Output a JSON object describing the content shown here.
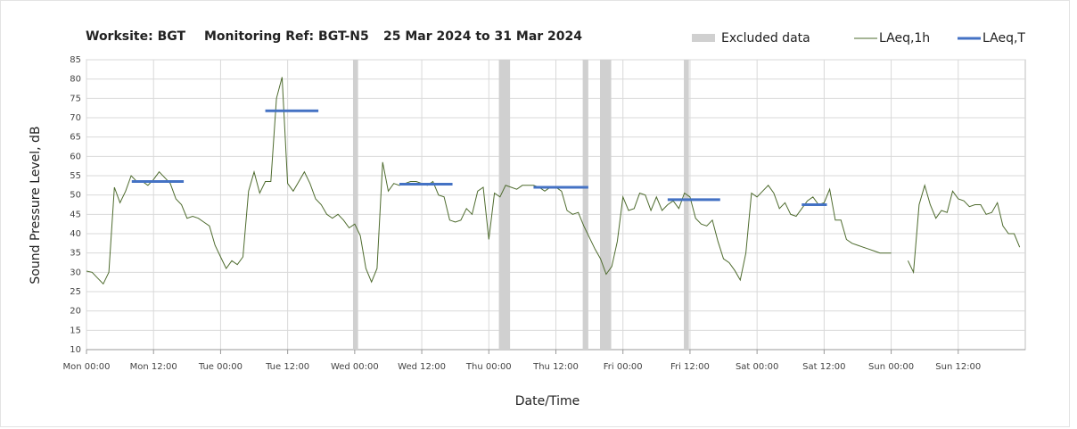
{
  "chart_data": {
    "type": "line",
    "title_parts": [
      "Worksite: BGT",
      "Monitoring Ref: BGT-N5",
      "25 Mar 2024 to 31 Mar 2024"
    ],
    "y_label": "Sound Pressure Level, dB",
    "x_label": "Date/Time",
    "xlim": [
      0,
      168
    ],
    "xticks": [
      {
        "value": 0,
        "label": "Mon 00:00"
      },
      {
        "value": 12,
        "label": "Mon 12:00"
      },
      {
        "value": 24,
        "label": "Tue 00:00"
      },
      {
        "value": 36,
        "label": "Tue 12:00"
      },
      {
        "value": 48,
        "label": "Wed 00:00"
      },
      {
        "value": 60,
        "label": "Wed 12:00"
      },
      {
        "value": 72,
        "label": "Thu 00:00"
      },
      {
        "value": 84,
        "label": "Thu 12:00"
      },
      {
        "value": 96,
        "label": "Fri 00:00"
      },
      {
        "value": 108,
        "label": "Fri 12:00"
      },
      {
        "value": 120,
        "label": "Sat 00:00"
      },
      {
        "value": 132,
        "label": "Sat 12:00"
      },
      {
        "value": 144,
        "label": "Sun 00:00"
      },
      {
        "value": 156,
        "label": "Sun 12:00"
      }
    ],
    "ylim": [
      10,
      85
    ],
    "yticks": [
      10,
      15,
      20,
      25,
      30,
      35,
      40,
      45,
      50,
      55,
      60,
      65,
      70,
      75,
      80,
      85
    ],
    "grid": true,
    "excluded": {
      "name": "Excluded data",
      "color": "#d0d0d0",
      "ranges": [
        [
          47.7,
          48.6
        ],
        [
          73.8,
          75.8
        ],
        [
          88.8,
          89.8
        ],
        [
          91.9,
          93.9
        ],
        [
          106.9,
          107.8
        ]
      ]
    },
    "series": [
      {
        "name": "LAeq,1h",
        "color": "#4e6b2e",
        "x": [
          0,
          1,
          2,
          3,
          4,
          5,
          6,
          7,
          8,
          9,
          10,
          11,
          12,
          13,
          14,
          15,
          16,
          17,
          18,
          19,
          20,
          21,
          22,
          23,
          24,
          25,
          26,
          27,
          28,
          29,
          30,
          31,
          32,
          33,
          34,
          35,
          36,
          37,
          38,
          39,
          40,
          41,
          42,
          43,
          44,
          45,
          46,
          47,
          48,
          49,
          50,
          51,
          52,
          53,
          54,
          55,
          56,
          57,
          58,
          59,
          60,
          61,
          62,
          63,
          64,
          65,
          66,
          67,
          68,
          69,
          70,
          71,
          72,
          73,
          74,
          75,
          76,
          77,
          78,
          79,
          80,
          81,
          82,
          83,
          84,
          85,
          86,
          87,
          88,
          89,
          90,
          91,
          92,
          93,
          94,
          95,
          96,
          97,
          98,
          99,
          100,
          101,
          102,
          103,
          104,
          105,
          106,
          107,
          108,
          109,
          110,
          111,
          112,
          113,
          114,
          115,
          116,
          117,
          118,
          119,
          120,
          121,
          122,
          123,
          124,
          125,
          126,
          127,
          128,
          129,
          130,
          131,
          132,
          133,
          134,
          135,
          136,
          137,
          138,
          139,
          140,
          141,
          142,
          143,
          144,
          145,
          146,
          147,
          148,
          149,
          150,
          151,
          152,
          153,
          154,
          155,
          156,
          157,
          158,
          159,
          160,
          161,
          162,
          163,
          164,
          165,
          166,
          167
        ],
        "values": [
          30.3,
          30,
          28.5,
          27,
          30,
          52,
          48,
          51,
          55,
          53.5,
          53.5,
          52.5,
          54,
          56,
          54.5,
          53,
          49,
          47.5,
          44,
          44.5,
          44,
          43,
          42,
          37,
          34,
          31,
          33,
          32,
          34,
          51,
          56,
          50.5,
          53.5,
          53.5,
          75,
          80.5,
          53,
          51,
          53.5,
          56,
          53,
          49,
          47.5,
          45,
          44,
          45,
          43.5,
          41.5,
          42.5,
          39.5,
          31,
          27.5,
          31,
          58.5,
          51,
          53,
          52.5,
          53,
          53.5,
          53.5,
          53,
          52.5,
          53.5,
          50,
          49.5,
          43.5,
          43,
          43.5,
          46.5,
          45,
          51,
          52,
          38.5,
          50.5,
          49.5,
          52.5,
          52,
          51.5,
          52.5,
          52.5,
          52.5,
          52,
          51,
          52,
          52,
          51,
          46,
          45,
          45.5,
          42,
          39,
          36,
          33.5,
          29.5,
          31.5,
          38,
          49.5,
          46,
          46.5,
          50.5,
          50,
          46,
          49.5,
          46,
          47.5,
          48.5,
          46.5,
          50.5,
          49.5,
          44,
          42.5,
          42,
          43.5,
          38,
          33.5,
          32.5,
          30.5,
          28,
          35,
          50.5,
          49.5,
          51,
          52.5,
          50.5,
          46.5,
          48,
          45,
          44.5,
          46.5,
          48.5,
          49.5,
          47.5,
          48,
          51.5,
          43.5,
          43.5,
          38.5,
          37.5,
          37,
          36.5,
          36,
          35.5,
          35,
          35,
          35,
          null,
          null,
          33,
          30,
          47.5,
          52.5,
          47.5,
          44,
          46,
          45.5,
          51,
          49,
          48.5,
          47,
          47.5,
          47.5,
          45,
          45.5,
          48,
          42,
          40,
          40,
          36.5
        ]
      },
      {
        "name": "LAeq,T",
        "color": "#4472c4",
        "segments": [
          {
            "x": [
              8.1,
              17.4
            ],
            "value": 53.5
          },
          {
            "x": [
              32,
              41.5
            ],
            "value": 71.8
          },
          {
            "x": [
              56,
              65.5
            ],
            "value": 52.8
          },
          {
            "x": [
              80,
              89.8
            ],
            "value": 52
          },
          {
            "x": [
              104,
              113.4
            ],
            "value": 48.8
          },
          {
            "x": [
              128,
              132.5
            ],
            "value": 47.5
          }
        ]
      }
    ]
  }
}
